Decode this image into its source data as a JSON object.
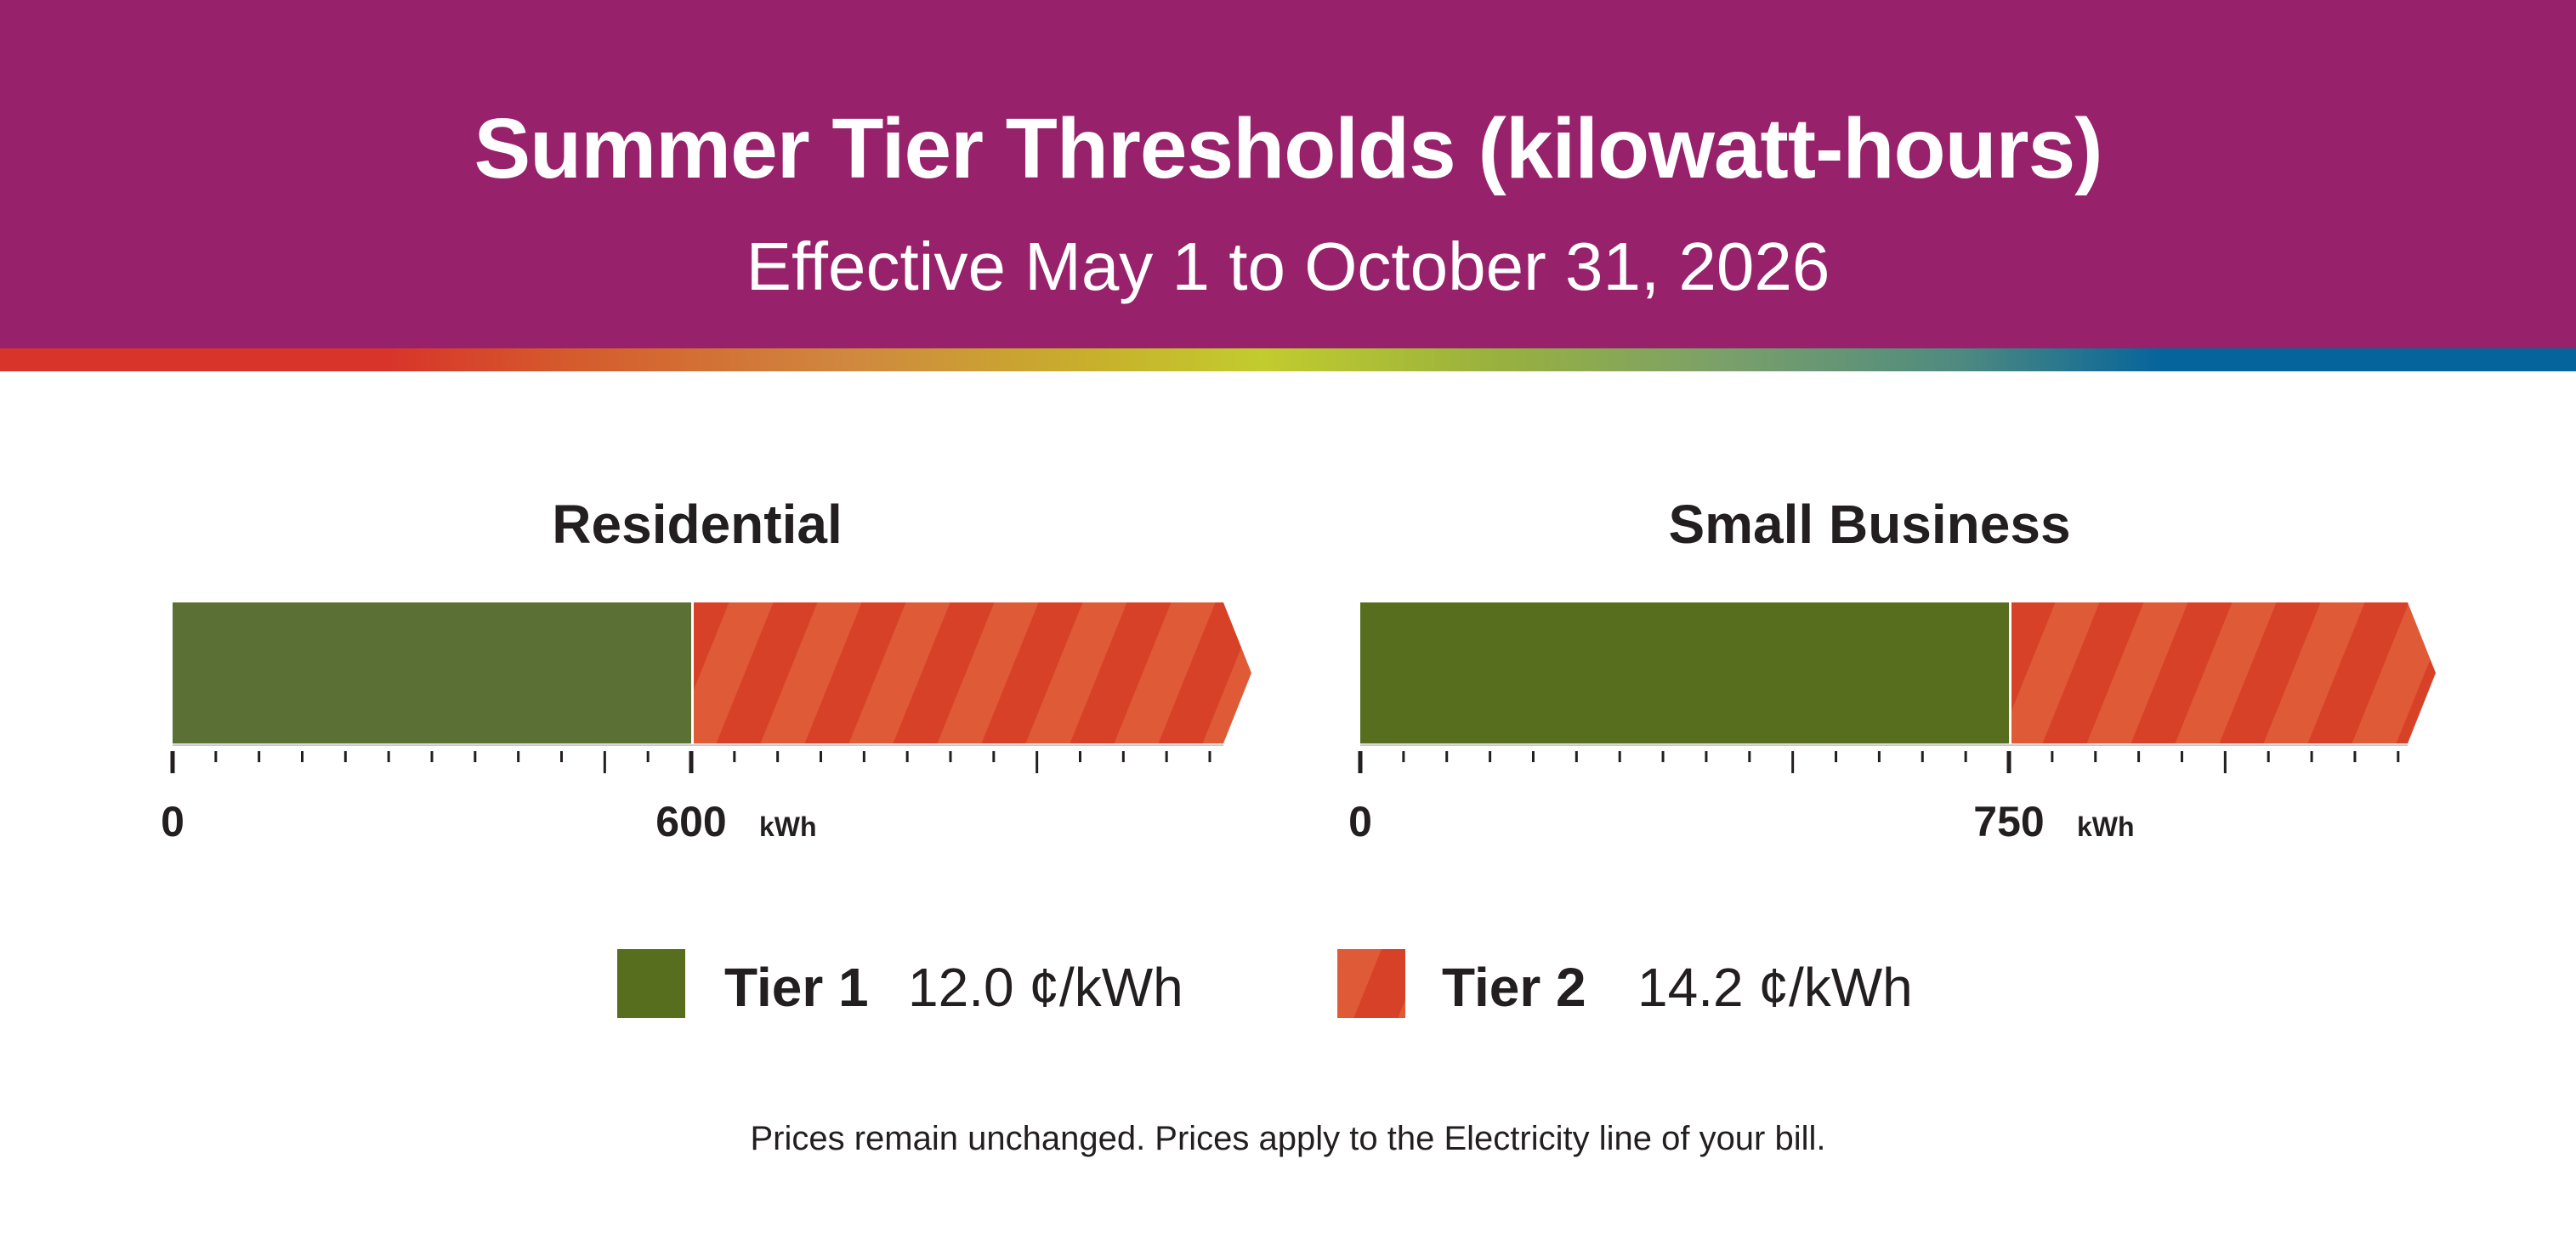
{
  "header": {
    "title": "Summer Tier Thresholds (kilowatt-hours)",
    "subtitle": "Effective May 1 to October 31, 2026"
  },
  "chart_data": {
    "type": "bar",
    "orientation": "horizontal",
    "unit": "kWh",
    "xlim": [
      0,
      1200
    ],
    "tick_interval": 50,
    "major_ticks": [
      0,
      500,
      1000
    ],
    "categories": [
      "Residential",
      "Small Business"
    ],
    "charts": [
      {
        "title": "Residential",
        "tier1_threshold": 600,
        "tick_labels": [
          "0",
          "600"
        ],
        "unit_label": "kWh",
        "tier1_color": "#5a7035"
      },
      {
        "title": "Small Business",
        "tier1_threshold": 750,
        "tick_labels": [
          "0",
          "750"
        ],
        "unit_label": "kWh",
        "tier1_color": "#586e1f"
      }
    ],
    "legend": [
      {
        "name": "Tier 1",
        "price": "12.0 ¢/kWh",
        "color": "#586e1f",
        "pattern": "solid"
      },
      {
        "name": "Tier 2",
        "price": "14.2 ¢/kWh",
        "color": "#d74128",
        "stripe_color": "#df5a36",
        "pattern": "diagonal-stripes"
      }
    ],
    "legend_position": "bottom"
  },
  "colors": {
    "header": "#97216a",
    "tier2": "#d74128",
    "tier2_stripe": "#df5a36"
  },
  "footnote": "Prices remain unchanged. Prices apply to the Electricity line of your bill."
}
